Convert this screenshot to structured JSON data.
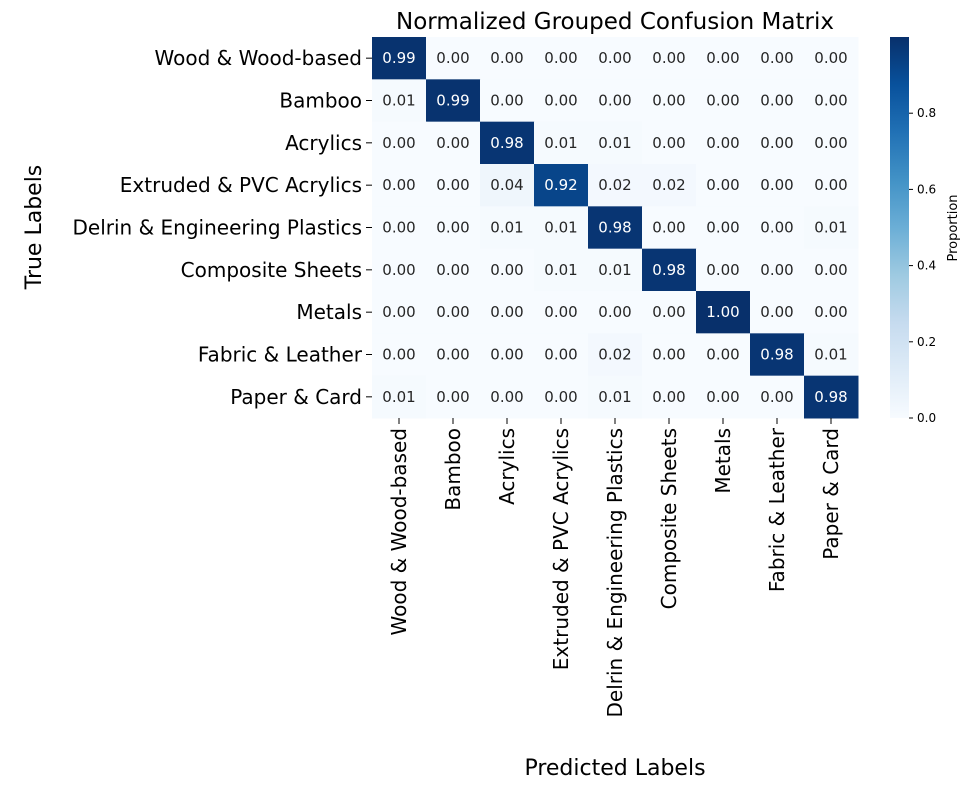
{
  "chart_data": {
    "type": "heatmap",
    "title": "Normalized Grouped Confusion Matrix",
    "xlabel": "Predicted Labels",
    "ylabel": "True Labels",
    "categories": [
      "Wood & Wood-based",
      "Bamboo",
      "Acrylics",
      "Extruded & PVC Acrylics",
      "Delrin & Engineering Plastics",
      "Composite Sheets",
      "Metals",
      "Fabric & Leather",
      "Paper & Card"
    ],
    "matrix": [
      [
        0.99,
        0.0,
        0.0,
        0.0,
        0.0,
        0.0,
        0.0,
        0.0,
        0.0
      ],
      [
        0.01,
        0.99,
        0.0,
        0.0,
        0.0,
        0.0,
        0.0,
        0.0,
        0.0
      ],
      [
        0.0,
        0.0,
        0.98,
        0.01,
        0.01,
        0.0,
        0.0,
        0.0,
        0.0
      ],
      [
        0.0,
        0.0,
        0.04,
        0.92,
        0.02,
        0.02,
        0.0,
        0.0,
        0.0
      ],
      [
        0.0,
        0.0,
        0.01,
        0.01,
        0.98,
        0.0,
        0.0,
        0.0,
        0.01
      ],
      [
        0.0,
        0.0,
        0.0,
        0.01,
        0.01,
        0.98,
        0.0,
        0.0,
        0.0
      ],
      [
        0.0,
        0.0,
        0.0,
        0.0,
        0.0,
        0.0,
        1.0,
        0.0,
        0.0
      ],
      [
        0.0,
        0.0,
        0.0,
        0.0,
        0.02,
        0.0,
        0.0,
        0.98,
        0.01
      ],
      [
        0.01,
        0.0,
        0.0,
        0.0,
        0.01,
        0.0,
        0.0,
        0.0,
        0.98
      ]
    ],
    "value_format": "2 decimals",
    "colormap": "Blues",
    "colorbar": {
      "label": "Proportion",
      "range": [
        0.0,
        1.0
      ],
      "ticks": [
        0.0,
        0.2,
        0.4,
        0.6,
        0.8
      ],
      "tick_labels": [
        "0.0",
        "0.2",
        "0.4",
        "0.6",
        "0.8"
      ]
    }
  }
}
